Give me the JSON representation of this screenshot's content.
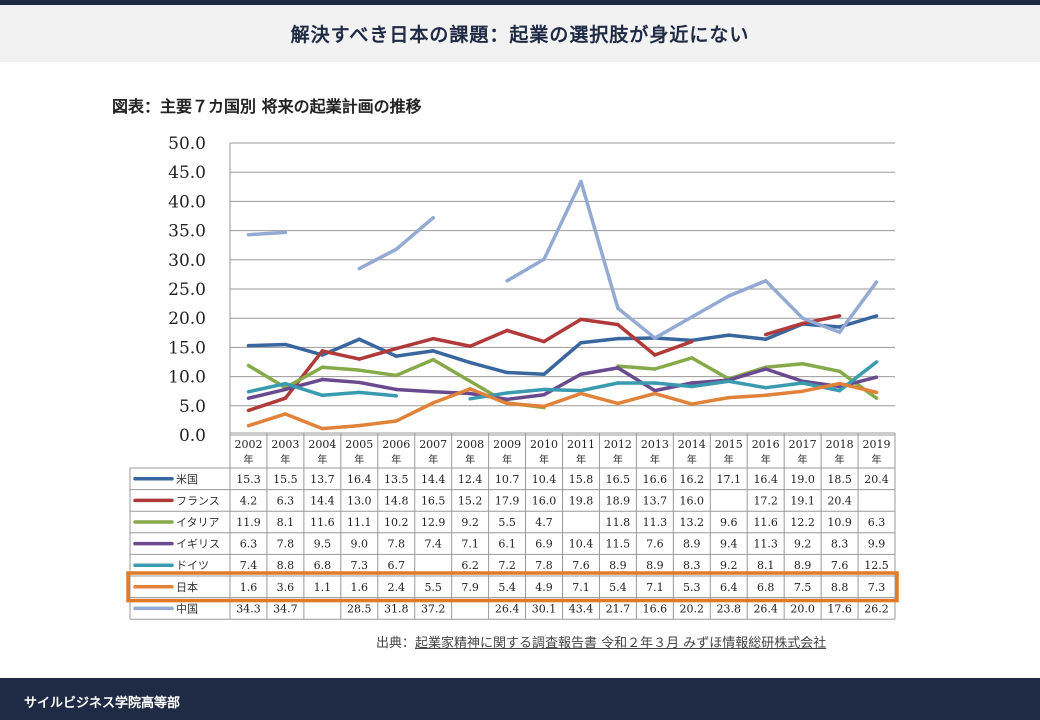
{
  "header": {
    "title": "解決すべき日本の課題：起業の選択肢が身近にない"
  },
  "figure_title": "図表：主要７カ国別 将来の起業計画の推移",
  "source": {
    "prefix": "出典：",
    "text": "起業家精神に関する調査報告書 令和２年３月 みずほ情報総研株式会社"
  },
  "footer": {
    "text": "サイルビジネス学院高等部"
  },
  "highlight_color": "#e07b28",
  "chart_data": {
    "type": "line",
    "title": "",
    "ylim": [
      0,
      50
    ],
    "yticks": [
      "0.0",
      "5.0",
      "10.0",
      "15.0",
      "20.0",
      "25.0",
      "30.0",
      "35.0",
      "40.0",
      "45.0",
      "50.0"
    ],
    "categories": [
      "2002",
      "2003",
      "2004",
      "2005",
      "2006",
      "2007",
      "2008",
      "2009",
      "2010",
      "2011",
      "2012",
      "2013",
      "2014",
      "2015",
      "2016",
      "2017",
      "2018",
      "2019"
    ],
    "year_suffix": "年",
    "grid": true,
    "highlight_series": "日本",
    "series": [
      {
        "name": "米国",
        "color": "#3a66a0",
        "values": [
          15.3,
          15.5,
          13.7,
          16.4,
          13.5,
          14.4,
          12.4,
          10.7,
          10.4,
          15.8,
          16.5,
          16.6,
          16.2,
          17.1,
          16.4,
          19.0,
          18.5,
          20.4
        ]
      },
      {
        "name": "フランス",
        "color": "#b03a3a",
        "values": [
          4.2,
          6.3,
          14.4,
          13.0,
          14.8,
          16.5,
          15.2,
          17.9,
          16.0,
          19.8,
          18.9,
          13.7,
          16.0,
          null,
          17.2,
          19.1,
          20.4,
          null
        ]
      },
      {
        "name": "イタリア",
        "color": "#86a94a",
        "values": [
          11.9,
          8.1,
          11.6,
          11.1,
          10.2,
          12.9,
          9.2,
          5.5,
          4.7,
          null,
          11.8,
          11.3,
          13.2,
          9.6,
          11.6,
          12.2,
          10.9,
          6.3
        ]
      },
      {
        "name": "イギリス",
        "color": "#6a4a8e",
        "values": [
          6.3,
          7.8,
          9.5,
          9.0,
          7.8,
          7.4,
          7.1,
          6.1,
          6.9,
          10.4,
          11.5,
          7.6,
          8.9,
          9.4,
          11.3,
          9.2,
          8.3,
          9.9
        ]
      },
      {
        "name": "ドイツ",
        "color": "#3a9bb0",
        "values": [
          7.4,
          8.8,
          6.8,
          7.3,
          6.7,
          null,
          6.2,
          7.2,
          7.8,
          7.6,
          8.9,
          8.9,
          8.3,
          9.2,
          8.1,
          8.9,
          7.6,
          12.5
        ]
      },
      {
        "name": "日本",
        "color": "#e0823a",
        "values": [
          1.6,
          3.6,
          1.1,
          1.6,
          2.4,
          5.5,
          7.9,
          5.4,
          4.9,
          7.1,
          5.4,
          7.1,
          5.3,
          6.4,
          6.8,
          7.5,
          8.8,
          7.3
        ]
      },
      {
        "name": "中国",
        "color": "#93aad2",
        "values": [
          34.3,
          34.7,
          null,
          28.5,
          31.8,
          37.2,
          null,
          26.4,
          30.1,
          43.4,
          21.7,
          16.6,
          20.2,
          23.8,
          26.4,
          20.0,
          17.6,
          26.2
        ]
      }
    ]
  }
}
